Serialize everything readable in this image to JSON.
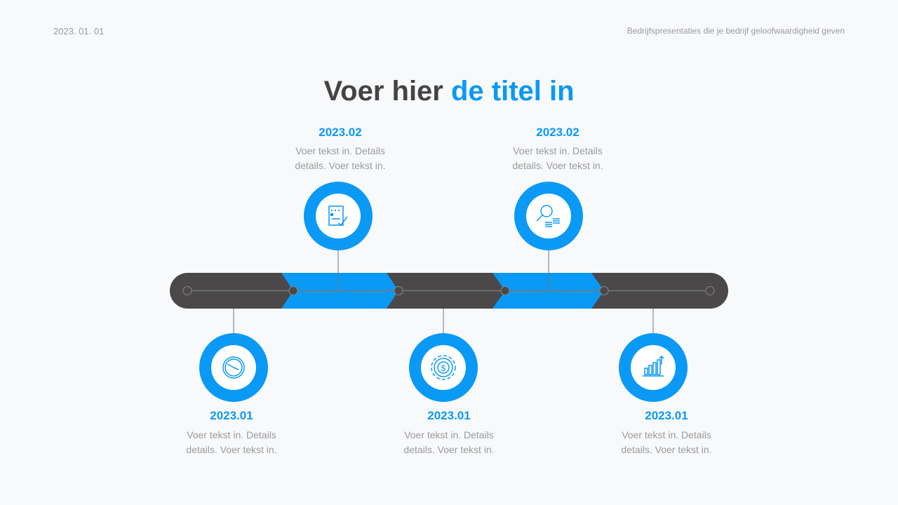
{
  "header": {
    "date": "2023. 01. 01",
    "tagline": "Bedrijfspresentaties die je bedrijf geloofwaardigheid geven"
  },
  "title": {
    "part1": "Voer hier ",
    "part2": "de titel in"
  },
  "colors": {
    "accent": "#0a99f5",
    "dark": "#4a4849"
  },
  "milestones": [
    {
      "date": "2023.01",
      "line1": "Voer tekst in. Details",
      "line2": "details. Voer tekst in.",
      "icon": "clock-icon"
    },
    {
      "date": "2023.02",
      "line1": "Voer tekst in. Details",
      "line2": "details. Voer tekst in.",
      "icon": "contract-signature-icon"
    },
    {
      "date": "2023.01",
      "line1": "Voer tekst in. Details",
      "line2": "details. Voer tekst in.",
      "icon": "dollar-gear-icon"
    },
    {
      "date": "2023.02",
      "line1": "Voer tekst in. Details",
      "line2": "details. Voer tekst in.",
      "icon": "magnifier-coins-icon"
    },
    {
      "date": "2023.01",
      "line1": "Voer tekst in. Details",
      "line2": "details. Voer tekst in.",
      "icon": "growth-chart-icon"
    }
  ]
}
